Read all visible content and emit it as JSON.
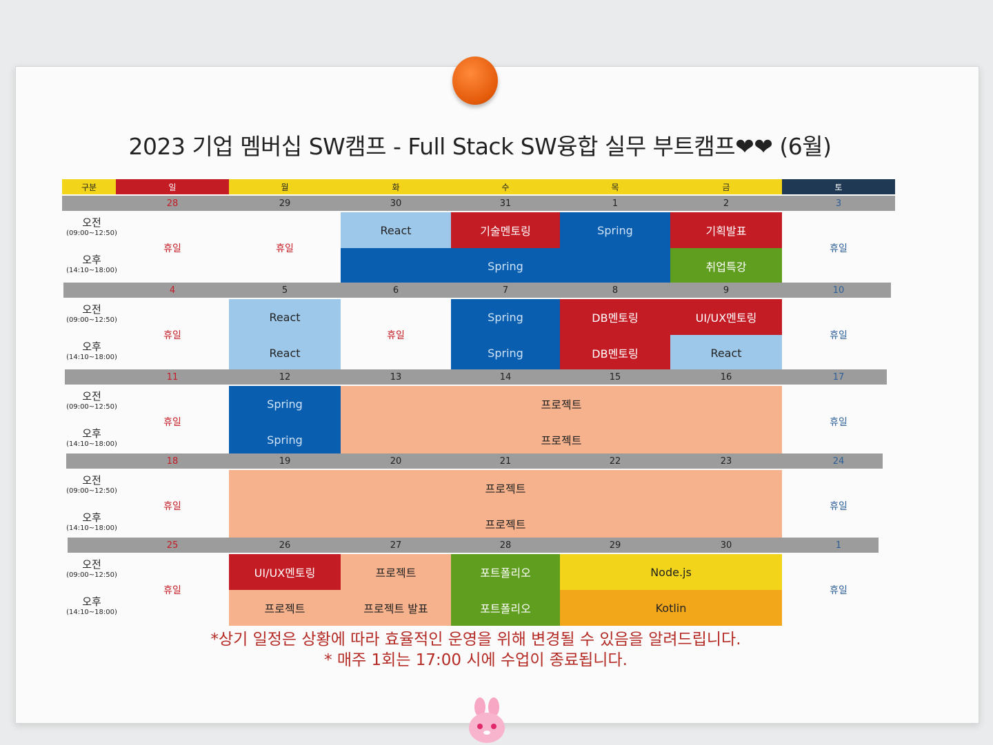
{
  "title": "2023 기업 멤버십 SW캠프 - Full Stack SW융합 실무 부트캠프❤❤ (6월)",
  "colors": {
    "yellow": "#f2d41a",
    "red": "#c41c25",
    "navy": "#1f3853",
    "gray": "#9c9c9c",
    "light_blue": "#9ec8ea",
    "blue": "#0a5eb0",
    "green": "#5f9e1f",
    "peach": "#f5b28c",
    "orange": "#f2a71b",
    "sunday_red": "#c41c25",
    "saturday_blue": "#2d5f97"
  },
  "header": [
    "구분",
    "일",
    "월",
    "화",
    "수",
    "목",
    "금",
    "토"
  ],
  "time_labels": {
    "am": "오전",
    "am_time": "(09:00~12:50)",
    "pm": "오후",
    "pm_time": "(14:10~18:00)"
  },
  "weeks": [
    {
      "dates": [
        "28",
        "29",
        "30",
        "31",
        "1",
        "2",
        "3"
      ],
      "rest": [
        "휴일",
        "휴일",
        "휴일"
      ],
      "blocks": [
        "React",
        "기술멘토링",
        "Spring",
        "기획발표",
        "Spring",
        "취업특강"
      ]
    },
    {
      "dates": [
        "4",
        "5",
        "6",
        "7",
        "8",
        "9",
        "10"
      ],
      "rest": [
        "휴일",
        "휴일",
        "휴일"
      ],
      "blocks": [
        "React",
        "React",
        "Spring",
        "Spring",
        "DB멘토링",
        "DB멘토링",
        "UI/UX멘토링",
        "React"
      ]
    },
    {
      "dates": [
        "11",
        "12",
        "13",
        "14",
        "15",
        "16",
        "17"
      ],
      "rest": [
        "휴일",
        "휴일"
      ],
      "blocks": [
        "Spring",
        "Spring",
        "프로젝트",
        "프로젝트"
      ]
    },
    {
      "dates": [
        "18",
        "19",
        "20",
        "21",
        "22",
        "23",
        "24"
      ],
      "rest": [
        "휴일",
        "휴일"
      ],
      "blocks": [
        "프로젝트",
        "프로젝트"
      ]
    },
    {
      "dates": [
        "25",
        "26",
        "27",
        "28",
        "29",
        "30",
        "1"
      ],
      "rest": [
        "휴일",
        "휴일"
      ],
      "blocks": [
        "UI/UX멘토링",
        "프로젝트",
        "프로젝트",
        "프로젝트 발표",
        "포트폴리오",
        "포트폴리오",
        "Node.js",
        "Kotlin"
      ]
    }
  ],
  "notes": [
    "*상기 일정은 상황에 따라 효율적인 운영을 위해 변경될 수 있음을 알려드립니다.",
    "* 매주 1회는 17:00 시에 수업이 종료됩니다."
  ]
}
